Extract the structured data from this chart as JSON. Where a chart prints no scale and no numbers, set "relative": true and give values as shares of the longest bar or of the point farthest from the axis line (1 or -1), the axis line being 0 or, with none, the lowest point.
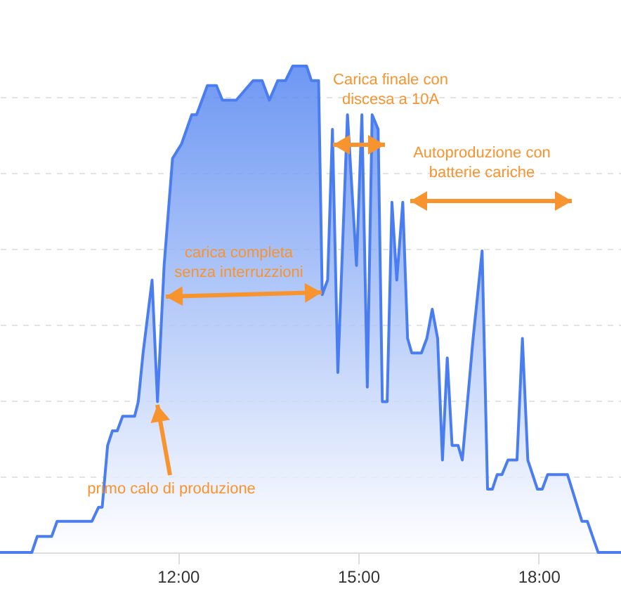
{
  "chart_data": {
    "type": "area",
    "relative": true,
    "color": "#4a7ef0",
    "x": [
      9.04,
      9.57,
      9.66,
      9.9,
      9.99,
      10.57,
      10.68,
      10.74,
      10.83,
      10.91,
      10.99,
      11.08,
      11.28,
      11.34,
      11.42,
      11.57,
      11.66,
      11.77,
      11.91,
      12.06,
      12.23,
      12.31,
      12.49,
      12.64,
      12.74,
      12.97,
      13.25,
      13.4,
      13.52,
      13.66,
      13.79,
      13.91,
      14.14,
      14.22,
      14.34,
      14.4,
      14.49,
      14.57,
      14.66,
      14.82,
      14.97,
      15.06,
      15.15,
      15.23,
      15.33,
      15.4,
      15.48,
      15.56,
      15.64,
      15.74,
      15.82,
      15.89,
      16.05,
      16.14,
      16.23,
      16.32,
      16.4,
      16.48,
      16.56,
      16.66,
      16.73,
      16.91,
      17.06,
      17.15,
      17.23,
      17.31,
      17.39,
      17.49,
      17.64,
      17.73,
      17.82,
      17.98,
      18.06,
      18.15,
      18.48,
      18.72,
      18.81,
      18.99,
      19.37
    ],
    "values": [
      0,
      0,
      0.033,
      0.033,
      0.064,
      0.064,
      0.093,
      0.093,
      0.22,
      0.25,
      0.25,
      0.28,
      0.28,
      0.31,
      0.41,
      0.56,
      0.31,
      0.59,
      0.81,
      0.84,
      0.9,
      0.9,
      0.96,
      0.96,
      0.93,
      0.93,
      0.97,
      0.97,
      0.93,
      0.97,
      0.97,
      1,
      1,
      0.97,
      0.97,
      0.53,
      0.56,
      0.87,
      0.37,
      0.9,
      0.59,
      0.9,
      0.34,
      0.9,
      0.87,
      0.31,
      0.31,
      0.72,
      0.56,
      0.72,
      0.44,
      0.41,
      0.41,
      0.44,
      0.5,
      0.44,
      0.19,
      0.4,
      0.22,
      0.22,
      0.19,
      0.44,
      0.62,
      0.13,
      0.13,
      0.16,
      0.16,
      0.19,
      0.19,
      0.44,
      0.19,
      0.13,
      0.13,
      0.16,
      0.16,
      0.064,
      0.064,
      0,
      0
    ],
    "xlim": [
      9.04,
      19.37
    ],
    "xticks": [
      {
        "value": 12,
        "label": "12:00"
      },
      {
        "value": 15,
        "label": "15:00"
      },
      {
        "value": 18,
        "label": "18:00"
      }
    ],
    "grid": "y",
    "annotations": [
      "Carica finale con\ndiscesa a 10A",
      "Autoproduzione con\nbatterie cariche",
      "carica completa\nsenza interruzzioni",
      "primo calo di produzione"
    ]
  }
}
